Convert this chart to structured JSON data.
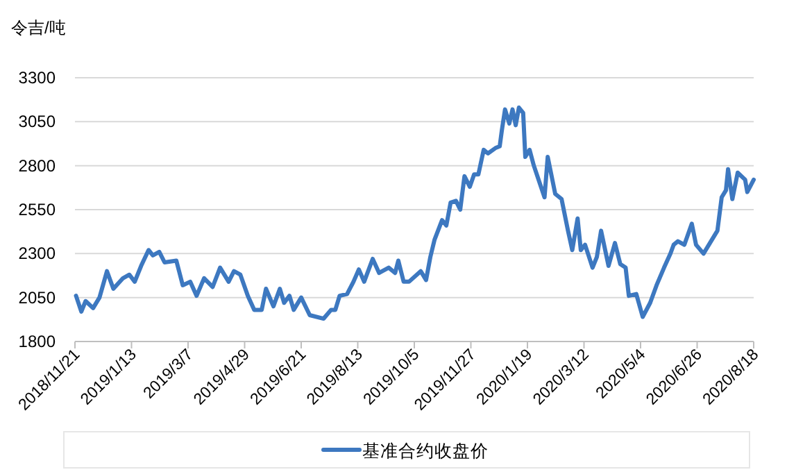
{
  "chart_data": {
    "type": "line",
    "ylabel": "令吉/吨",
    "x": [
      "2018-11-22",
      "2018-11-27",
      "2018-12-01",
      "2018-12-08",
      "2018-12-14",
      "2018-12-21",
      "2018-12-27",
      "2019-01-05",
      "2019-01-11",
      "2019-01-16",
      "2019-01-22",
      "2019-01-29",
      "2019-02-02",
      "2019-02-08",
      "2019-02-13",
      "2019-02-24",
      "2019-03-02",
      "2019-03-09",
      "2019-03-15",
      "2019-03-22",
      "2019-03-30",
      "2019-04-06",
      "2019-04-14",
      "2019-04-19",
      "2019-04-25",
      "2019-05-02",
      "2019-05-08",
      "2019-05-15",
      "2019-05-19",
      "2019-05-26",
      "2019-06-01",
      "2019-06-05",
      "2019-06-10",
      "2019-06-14",
      "2019-06-21",
      "2019-06-29",
      "2019-07-12",
      "2019-07-19",
      "2019-07-23",
      "2019-07-27",
      "2019-08-03",
      "2019-08-09",
      "2019-08-14",
      "2019-08-19",
      "2019-08-27",
      "2019-09-02",
      "2019-09-11",
      "2019-09-17",
      "2019-09-20",
      "2019-09-25",
      "2019-09-30",
      "2019-10-11",
      "2019-10-16",
      "2019-10-20",
      "2019-10-24",
      "2019-10-31",
      "2019-11-04",
      "2019-11-08",
      "2019-11-13",
      "2019-11-17",
      "2019-11-21",
      "2019-11-26",
      "2019-11-30",
      "2019-12-04",
      "2019-12-09",
      "2019-12-13",
      "2019-12-20",
      "2019-12-24",
      "2019-12-26",
      "2019-12-29",
      "2020-01-02",
      "2020-01-05",
      "2020-01-08",
      "2020-01-11",
      "2020-01-15",
      "2020-01-17",
      "2020-01-21",
      "2020-01-25",
      "2020-02-04",
      "2020-02-07",
      "2020-02-14",
      "2020-02-20",
      "2020-02-26",
      "2020-03-01",
      "2020-03-06",
      "2020-03-09",
      "2020-03-13",
      "2020-03-20",
      "2020-03-24",
      "2020-03-28",
      "2020-04-04",
      "2020-04-10",
      "2020-04-15",
      "2020-04-20",
      "2020-04-23",
      "2020-04-30",
      "2020-05-06",
      "2020-05-13",
      "2020-05-19",
      "2020-05-26",
      "2020-06-01",
      "2020-06-04",
      "2020-06-08",
      "2020-06-14",
      "2020-06-21",
      "2020-06-25",
      "2020-07-02",
      "2020-07-08",
      "2020-07-15",
      "2020-07-19",
      "2020-07-23",
      "2020-07-25",
      "2020-07-29",
      "2020-08-03",
      "2020-08-10",
      "2020-08-12",
      "2020-08-18"
    ],
    "series": [
      {
        "name": "基准合约收盘价",
        "color": "#3d78c0",
        "values": [
          2060,
          1970,
          2030,
          1990,
          2050,
          2200,
          2100,
          2160,
          2180,
          2140,
          2230,
          2320,
          2290,
          2310,
          2250,
          2260,
          2120,
          2140,
          2060,
          2160,
          2110,
          2220,
          2140,
          2200,
          2180,
          2060,
          1980,
          1980,
          2100,
          2000,
          2100,
          2020,
          2060,
          1980,
          2050,
          1950,
          1930,
          1980,
          1980,
          2060,
          2070,
          2140,
          2210,
          2140,
          2270,
          2190,
          2220,
          2190,
          2260,
          2140,
          2140,
          2200,
          2150,
          2280,
          2380,
          2490,
          2460,
          2590,
          2600,
          2550,
          2740,
          2680,
          2750,
          2750,
          2890,
          2870,
          2900,
          2910,
          3000,
          3120,
          3040,
          3120,
          3030,
          3130,
          3100,
          2850,
          2890,
          2800,
          2620,
          2850,
          2640,
          2610,
          2430,
          2320,
          2500,
          2320,
          2350,
          2220,
          2280,
          2430,
          2230,
          2360,
          2240,
          2220,
          2060,
          2070,
          1940,
          2020,
          2120,
          2220,
          2300,
          2350,
          2370,
          2350,
          2470,
          2350,
          2300,
          2360,
          2430,
          2620,
          2660,
          2780,
          2610,
          2760,
          2720,
          2650,
          2720
        ]
      }
    ],
    "xlim": [
      "2018-11-21",
      "2020-08-18"
    ],
    "xticks": [
      {
        "value": "2018-11-21",
        "label": "2018/11/21"
      },
      {
        "value": "2019-01-13",
        "label": "2019/1/13"
      },
      {
        "value": "2019-03-07",
        "label": "2019/3/7"
      },
      {
        "value": "2019-04-29",
        "label": "2019/4/29"
      },
      {
        "value": "2019-06-21",
        "label": "2019/6/21"
      },
      {
        "value": "2019-08-13",
        "label": "2019/8/13"
      },
      {
        "value": "2019-10-05",
        "label": "2019/10/5"
      },
      {
        "value": "2019-11-27",
        "label": "2019/11/27"
      },
      {
        "value": "2020-01-19",
        "label": "2020/1/19"
      },
      {
        "value": "2020-03-12",
        "label": "2020/3/12"
      },
      {
        "value": "2020-05-04",
        "label": "2020/5/4"
      },
      {
        "value": "2020-06-26",
        "label": "2020/6/26"
      },
      {
        "value": "2020-08-18",
        "label": "2020/8/18"
      }
    ],
    "ylim": [
      1800,
      3300
    ],
    "yticks": [
      1800,
      2050,
      2300,
      2550,
      2800,
      3050,
      3300
    ],
    "grid": "y",
    "legend": "bottom"
  }
}
